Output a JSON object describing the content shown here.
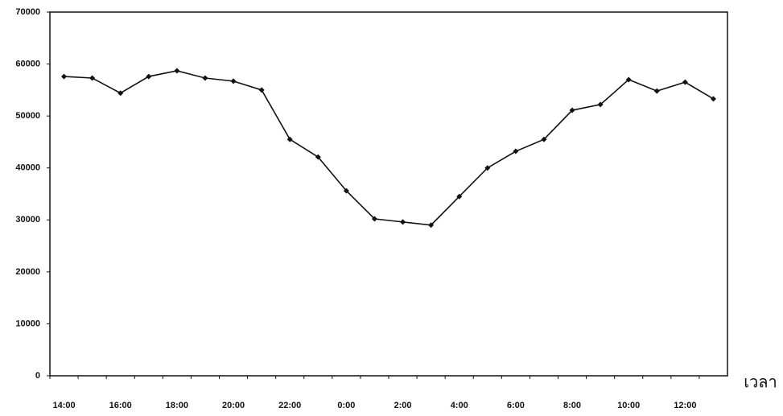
{
  "chart_data": {
    "type": "line",
    "x_label": "เวลา",
    "categories": [
      "14:00",
      null,
      "16:00",
      null,
      "18:00",
      null,
      "20:00",
      null,
      "22:00",
      null,
      "0:00",
      null,
      "2:00",
      null,
      "4:00",
      null,
      "6:00",
      null,
      "8:00",
      null,
      "10:00",
      null,
      "12:00",
      null
    ],
    "values": [
      57600,
      57300,
      54400,
      57600,
      58700,
      57300,
      56700,
      55000,
      45500,
      42100,
      35600,
      30200,
      29600,
      29000,
      34500,
      40000,
      43200,
      45500,
      51100,
      52200,
      57000,
      54800,
      56500,
      53300
    ],
    "color": "#111111",
    "ylim": [
      0,
      70000
    ],
    "yticks": [
      0,
      10000,
      20000,
      30000,
      40000,
      50000,
      60000,
      70000
    ],
    "grid": false
  }
}
